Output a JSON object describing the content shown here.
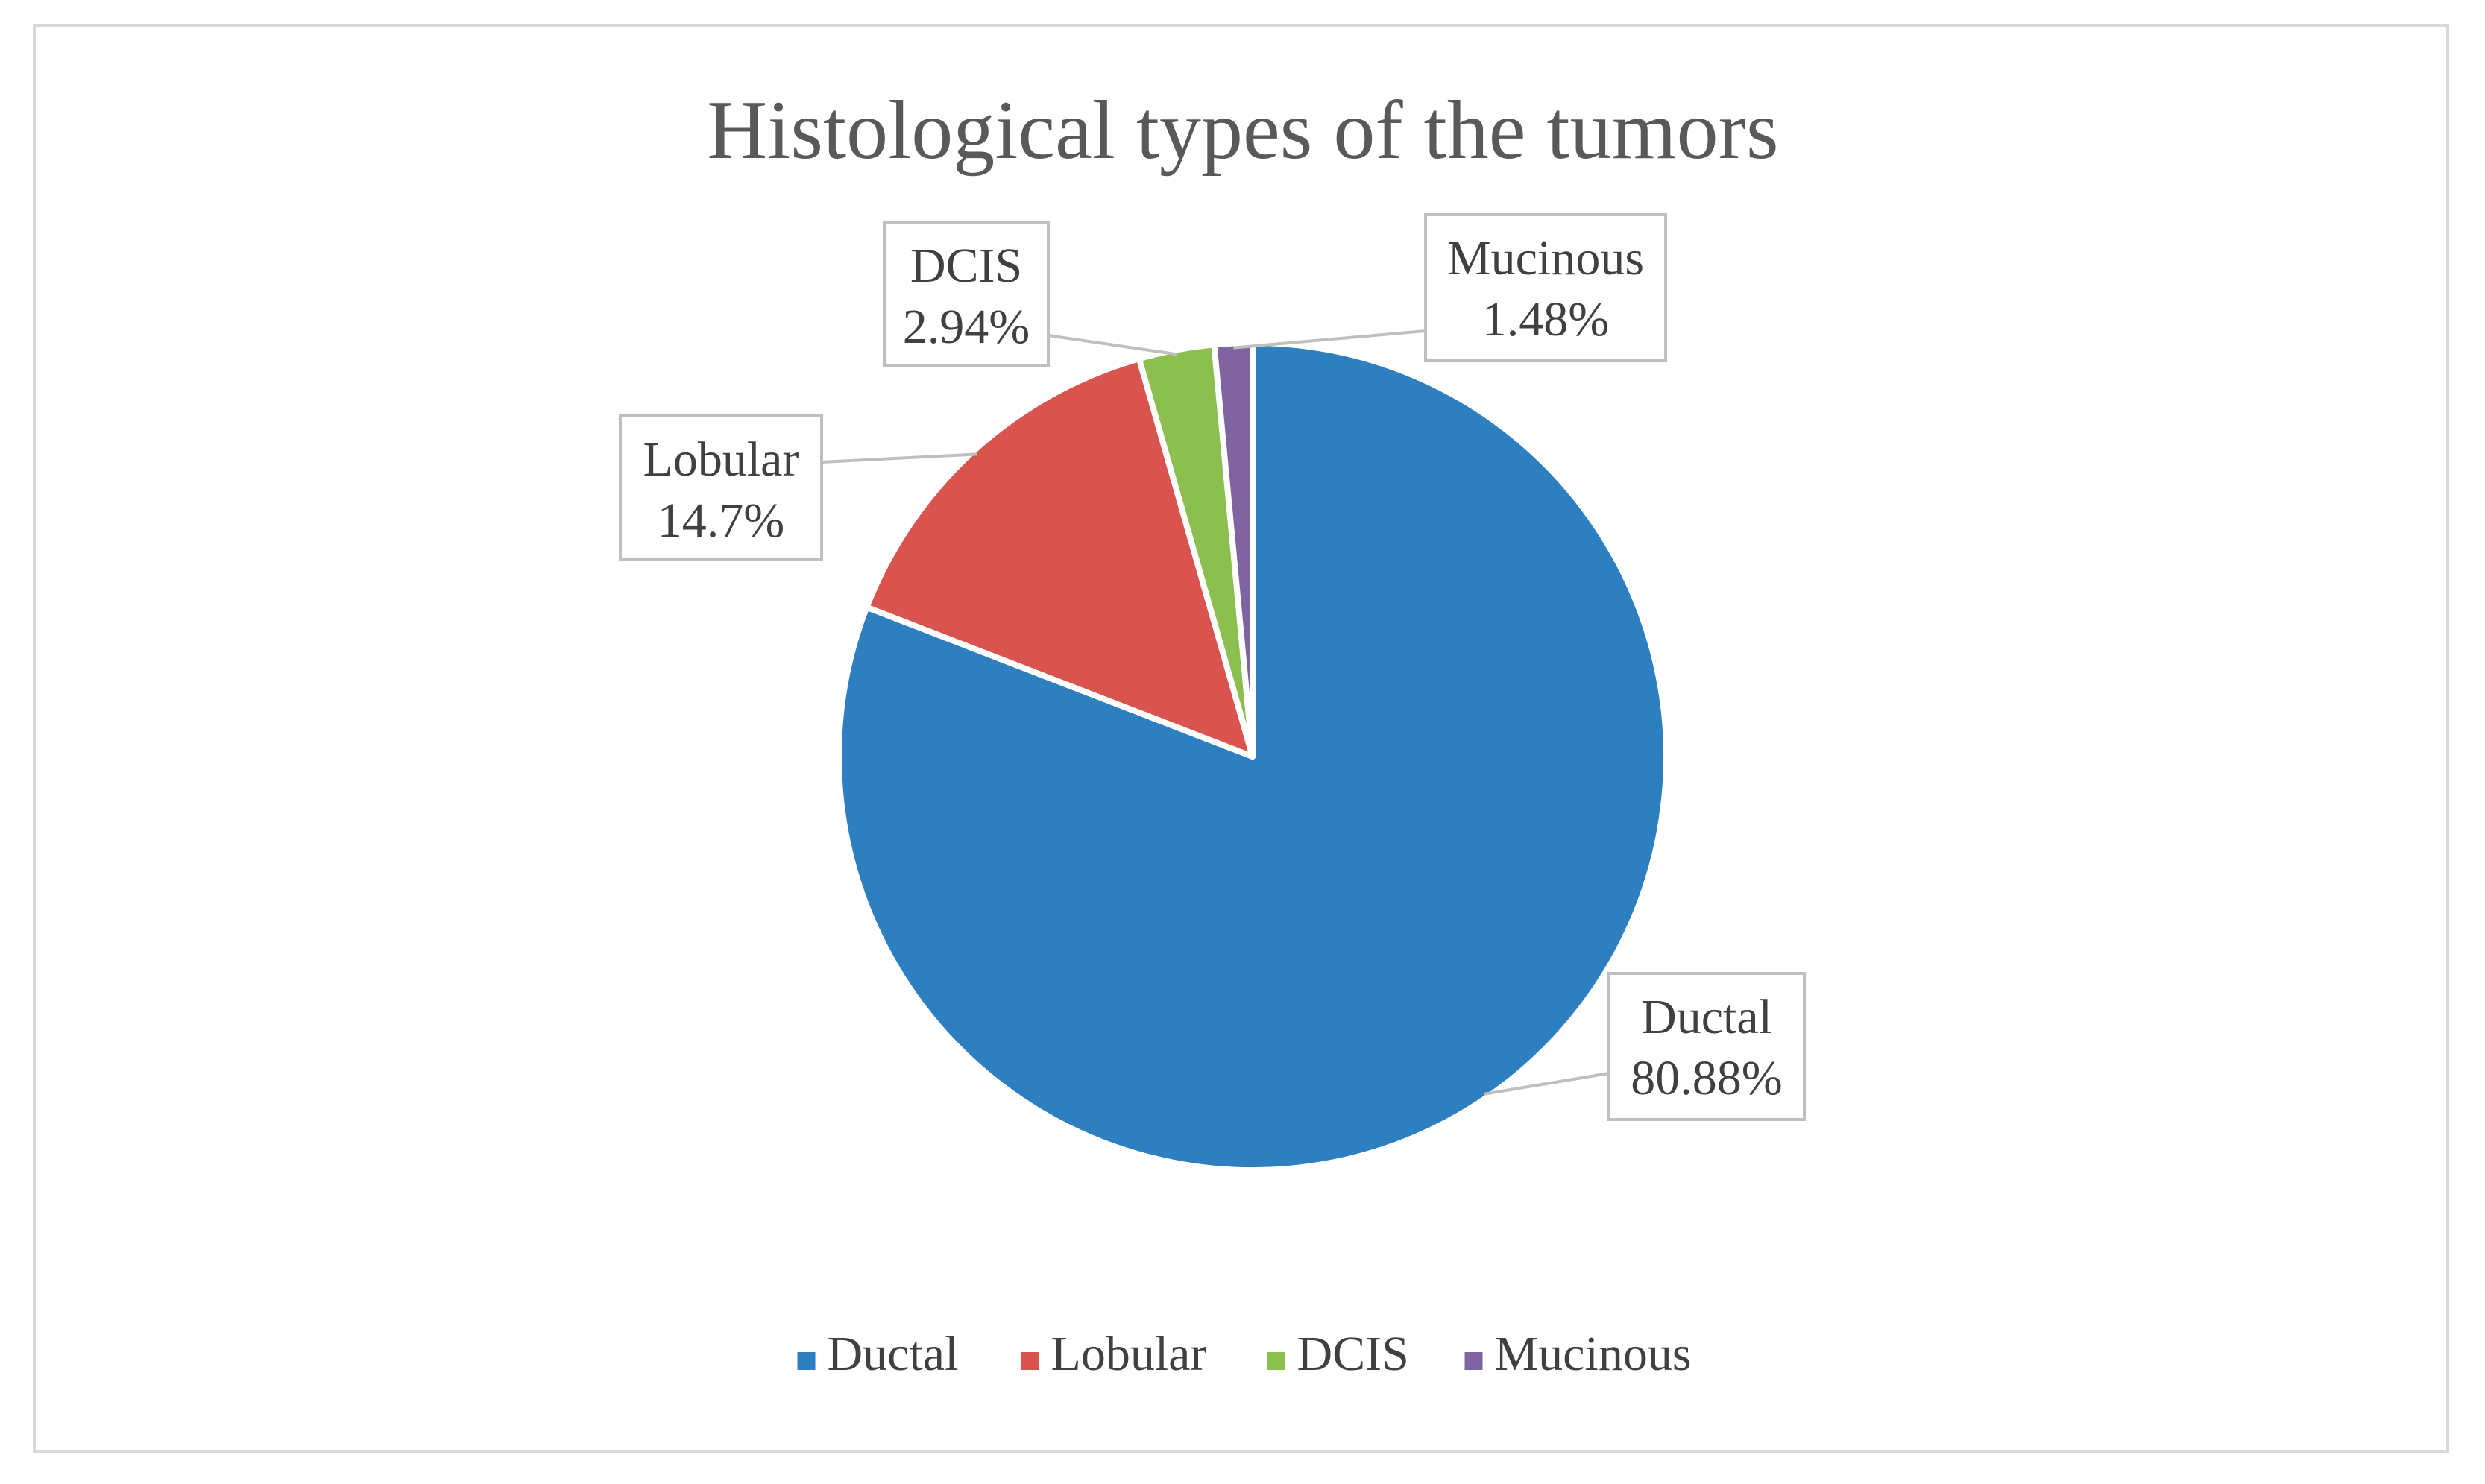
{
  "chart_data": {
    "type": "pie",
    "title": "Histological types of the tumors",
    "categories": [
      "Ductal",
      "Lobular",
      "DCIS",
      "Mucinous"
    ],
    "values": [
      80.88,
      14.7,
      2.94,
      1.48
    ],
    "labels": [
      "80.88%",
      "14.7%",
      "2.94%",
      "1.48%"
    ],
    "colors": [
      "#2e7fbf",
      "#d9534f",
      "#8bbf4f",
      "#8064a2"
    ],
    "legend_position": "bottom",
    "start_angle_deg": 0,
    "direction": "clockwise"
  }
}
